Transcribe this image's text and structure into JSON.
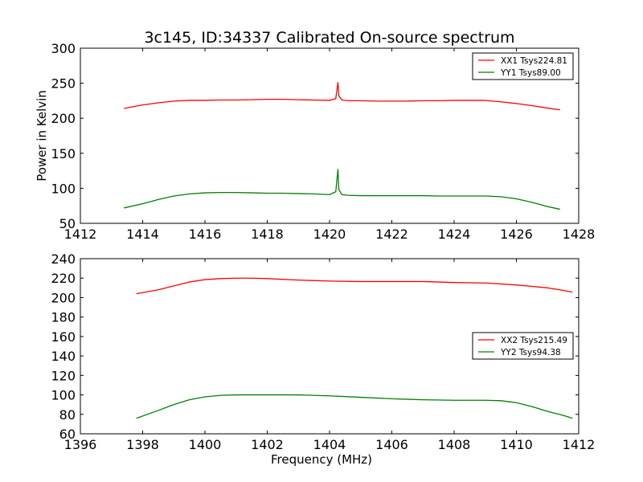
{
  "figure": {
    "title": "3c145, ID:34337 Calibrated On-source spectrum"
  },
  "chart_data": [
    {
      "type": "line",
      "title": "3c145, ID:34337 Calibrated On-source spectrum",
      "xlabel": "",
      "ylabel": "Power in Kelvin",
      "xlim": [
        1412,
        1428
      ],
      "ylim": [
        50,
        300
      ],
      "xticks": [
        1412,
        1414,
        1416,
        1418,
        1420,
        1422,
        1424,
        1426,
        1428
      ],
      "yticks": [
        50,
        100,
        150,
        200,
        250,
        300
      ],
      "grid": false,
      "legend_position": "top-right",
      "series": [
        {
          "name": "XX1 Tsys224.81",
          "color": "#ff0000",
          "x": [
            1413.4,
            1414.0,
            1414.5,
            1415.0,
            1415.5,
            1416.0,
            1416.5,
            1417.0,
            1417.5,
            1418.0,
            1418.5,
            1419.0,
            1419.5,
            1420.0,
            1420.2,
            1420.27,
            1420.3,
            1420.4,
            1420.6,
            1421.0,
            1421.5,
            1422.0,
            1422.5,
            1423.0,
            1423.5,
            1424.0,
            1424.5,
            1425.0,
            1425.5,
            1426.0,
            1426.5,
            1427.0,
            1427.4
          ],
          "values": [
            214,
            219,
            222,
            224.5,
            225.5,
            225.5,
            226,
            226,
            226.5,
            227,
            227,
            226.5,
            226,
            225.5,
            228,
            251,
            232,
            226,
            225,
            225,
            224.5,
            224.5,
            224.5,
            225,
            225,
            225.5,
            225.5,
            225.5,
            223.5,
            221,
            218,
            214.5,
            212
          ]
        },
        {
          "name": "YY1 Tsys89.00",
          "color": "#008000",
          "x": [
            1413.4,
            1414.0,
            1414.5,
            1415.0,
            1415.5,
            1416.0,
            1416.5,
            1417.0,
            1417.5,
            1418.0,
            1418.5,
            1419.0,
            1419.5,
            1420.0,
            1420.2,
            1420.27,
            1420.3,
            1420.4,
            1420.6,
            1421.0,
            1421.5,
            1422.0,
            1422.5,
            1423.0,
            1423.5,
            1424.0,
            1424.5,
            1425.0,
            1425.5,
            1426.0,
            1426.5,
            1427.0,
            1427.4
          ],
          "values": [
            72,
            78,
            84,
            89,
            92,
            93.5,
            94,
            94,
            93.5,
            93,
            93,
            92.5,
            92,
            91,
            95,
            127,
            98,
            91,
            90,
            89.5,
            89.5,
            89.5,
            89.5,
            89.5,
            89,
            89,
            89,
            89,
            88,
            85,
            80,
            74,
            70
          ]
        }
      ]
    },
    {
      "type": "line",
      "title": "",
      "xlabel": "Frequency (MHz)",
      "ylabel": "",
      "xlim": [
        1396,
        1412
      ],
      "ylim": [
        60,
        240
      ],
      "xticks": [
        1396,
        1398,
        1400,
        1402,
        1404,
        1406,
        1408,
        1410,
        1412
      ],
      "yticks": [
        60,
        80,
        100,
        120,
        140,
        160,
        180,
        200,
        220,
        240
      ],
      "grid": false,
      "legend_position": "center-right",
      "series": [
        {
          "name": "XX2 Tsys215.49",
          "color": "#ff0000",
          "x": [
            1397.8,
            1398.5,
            1399.0,
            1399.5,
            1400.0,
            1400.5,
            1401.0,
            1401.5,
            1402.0,
            1403.0,
            1404.0,
            1405.0,
            1406.0,
            1407.0,
            1408.0,
            1409.0,
            1410.0,
            1410.5,
            1411.0,
            1411.5,
            1411.8
          ],
          "values": [
            204,
            208,
            212,
            216,
            218.5,
            219.5,
            220,
            220,
            219.5,
            218,
            217,
            216.5,
            216.5,
            216.5,
            215.5,
            215,
            213,
            211.5,
            210,
            207.5,
            205.5
          ]
        },
        {
          "name": "YY2 Tsys94.38",
          "color": "#008000",
          "x": [
            1397.8,
            1398.5,
            1399.0,
            1399.5,
            1400.0,
            1400.5,
            1401.0,
            1401.5,
            1402.0,
            1403.0,
            1404.0,
            1405.0,
            1406.0,
            1407.0,
            1408.0,
            1409.0,
            1409.5,
            1410.0,
            1410.5,
            1411.0,
            1411.5,
            1411.8
          ],
          "values": [
            76,
            84,
            90,
            95,
            98,
            99.5,
            100,
            100,
            100,
            100,
            99,
            97.5,
            96,
            95,
            94.5,
            94.5,
            94,
            92,
            88,
            83,
            79,
            76
          ]
        }
      ]
    }
  ]
}
